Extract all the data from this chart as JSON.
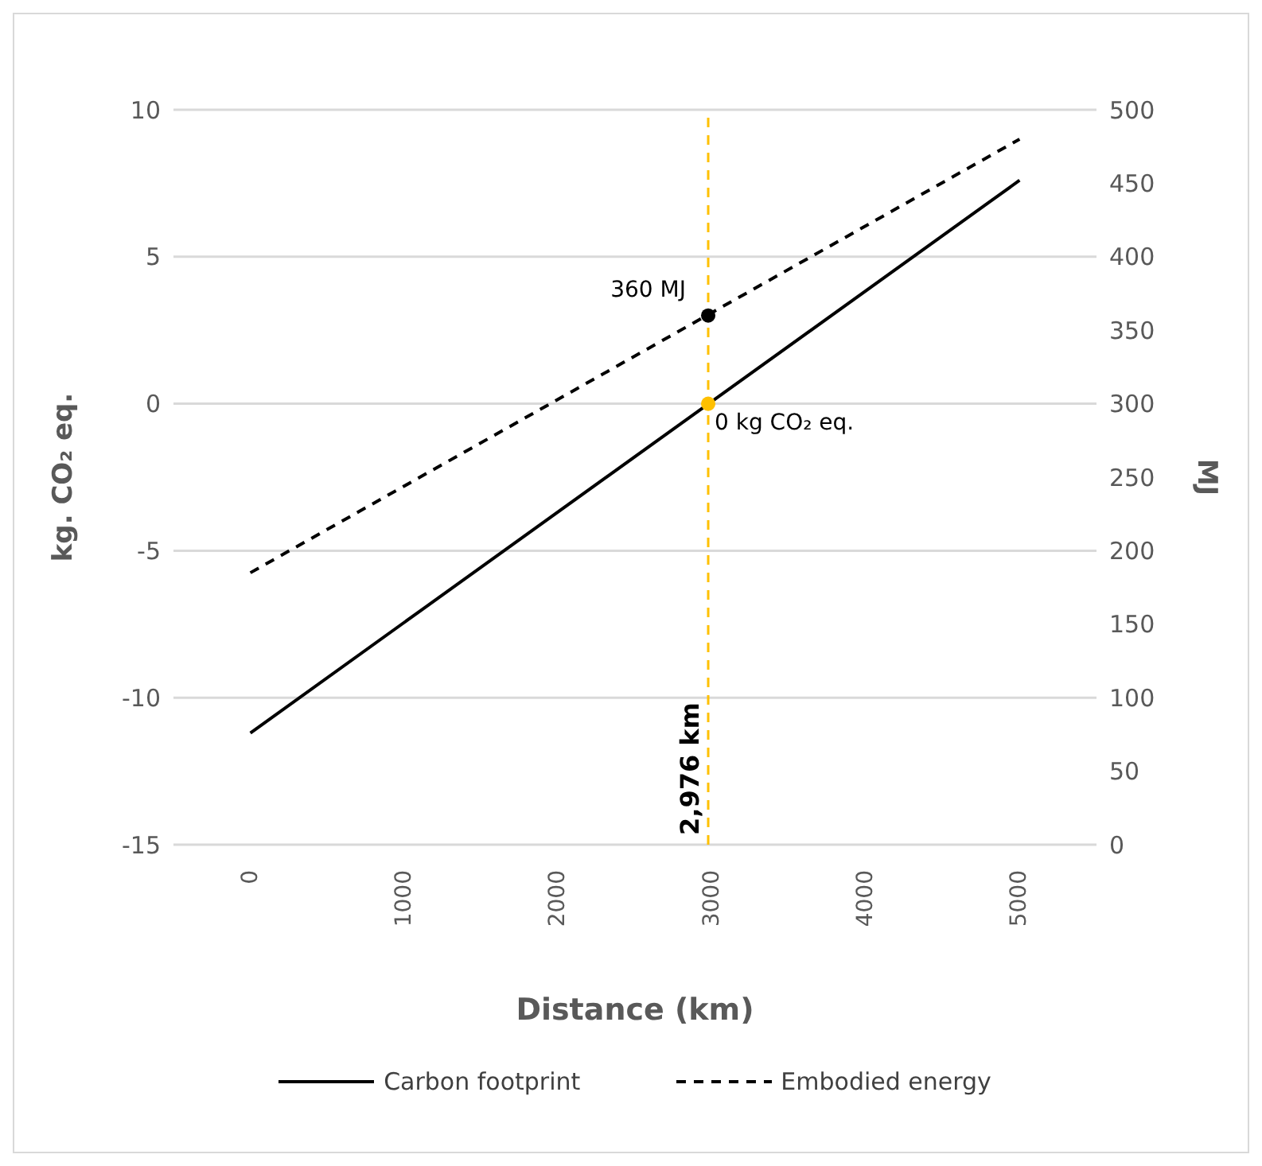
{
  "chart_data": {
    "type": "line",
    "xlabel": "Distance (km)",
    "ylabel": "kg. CO₂ eq.",
    "y2label": "MJ",
    "xlim": [
      -500,
      5500
    ],
    "xticks": [
      0,
      1000,
      2000,
      3000,
      4000,
      5000
    ],
    "ylim": [
      -15,
      10
    ],
    "yticks": [
      -15,
      -10,
      -5,
      0,
      5,
      10
    ],
    "y2lim": [
      0,
      500
    ],
    "y2ticks": [
      0,
      50,
      100,
      150,
      200,
      250,
      300,
      350,
      400,
      450,
      500
    ],
    "series": [
      {
        "name": "Carbon footprint",
        "color": "#000000",
        "x": [
          0,
          5000
        ],
        "values": [
          -11.2,
          7.6
        ],
        "line_style": "solid",
        "marker": "none"
      },
      {
        "name": "Embodied energy",
        "color": "#000000",
        "x": [
          0,
          5000
        ],
        "values": [
          185,
          480
        ],
        "axis": "y2",
        "line_style": "dashed",
        "marker": "none"
      },
      {
        "type": "scatter",
        "color": "#000000",
        "x": [
          2976
        ],
        "values": [
          360
        ],
        "axis": "y2",
        "marker": "circle"
      },
      {
        "type": "scatter",
        "color": "#ffc000",
        "x": [
          2976
        ],
        "values": [
          0
        ],
        "marker": "circle"
      }
    ],
    "ref_lines": [
      {
        "axis": "x",
        "value": 2976,
        "label": "2,976 km",
        "color": "#ffc000",
        "line_style": "dashed"
      }
    ],
    "annotations": [
      {
        "text": "360 MJ",
        "x": 2976,
        "y": 3
      },
      {
        "text": "0 kg CO₂ eq.",
        "x": 2976,
        "y": 0
      }
    ],
    "grid": "y",
    "legend": "bottom"
  }
}
